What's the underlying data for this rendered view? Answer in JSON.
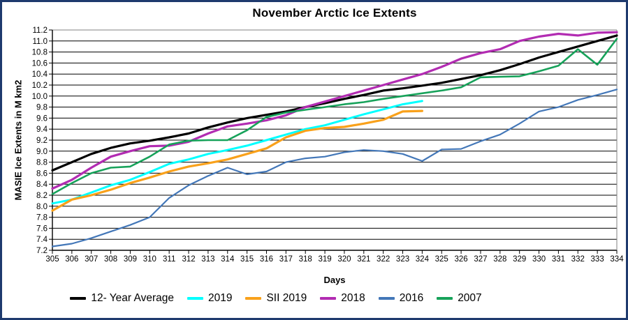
{
  "window": {
    "background": "#ffffff",
    "frame_color": "#1e3a6e"
  },
  "chart_data": {
    "type": "line",
    "title": "November Arctic Ice Extents",
    "xlabel": "Days",
    "ylabel": "MASIE Ice Extents in M km2",
    "xlim": [
      305,
      334
    ],
    "ylim": [
      7.2,
      11.2
    ],
    "ytick_step": 0.2,
    "grid": "horizontal",
    "legend_position": "bottom",
    "x": [
      305,
      306,
      307,
      308,
      309,
      310,
      311,
      312,
      313,
      314,
      315,
      316,
      317,
      318,
      319,
      320,
      321,
      322,
      323,
      324,
      325,
      326,
      327,
      328,
      329,
      330,
      331,
      332,
      333,
      334
    ],
    "series": [
      {
        "name": "12- Year Average",
        "color": "#000000",
        "width": 3.2,
        "values": [
          8.65,
          8.8,
          8.95,
          9.06,
          9.14,
          9.19,
          9.25,
          9.32,
          9.43,
          9.52,
          9.6,
          9.66,
          9.72,
          9.8,
          9.87,
          9.95,
          10.02,
          10.1,
          10.14,
          10.19,
          10.24,
          10.31,
          10.38,
          10.47,
          10.58,
          10.7,
          10.8,
          10.9,
          11.0,
          11.1
        ]
      },
      {
        "name": "2019",
        "color": "#00ffff",
        "width": 3.0,
        "values": [
          8.05,
          8.12,
          8.25,
          8.38,
          8.48,
          8.62,
          8.77,
          8.85,
          8.95,
          9.02,
          9.1,
          9.2,
          9.3,
          9.4,
          9.47,
          9.57,
          9.67,
          9.76,
          9.85,
          9.91
        ]
      },
      {
        "name": "SII 2019",
        "color": "#f9a11b",
        "width": 3.2,
        "values": [
          7.92,
          8.12,
          8.2,
          8.3,
          8.42,
          8.52,
          8.63,
          8.72,
          8.78,
          8.85,
          8.95,
          9.05,
          9.25,
          9.37,
          9.42,
          9.44,
          9.5,
          9.57,
          9.72,
          9.73
        ]
      },
      {
        "name": "2018",
        "color": "#b22cb2",
        "width": 3.2,
        "values": [
          8.32,
          8.48,
          8.7,
          8.9,
          9.0,
          9.09,
          9.1,
          9.17,
          9.32,
          9.45,
          9.5,
          9.56,
          9.65,
          9.8,
          9.9,
          10.0,
          10.1,
          10.2,
          10.3,
          10.4,
          10.53,
          10.68,
          10.78,
          10.85,
          11.0,
          11.08,
          11.13,
          11.1,
          11.15,
          11.16
        ]
      },
      {
        "name": "2016",
        "color": "#4377b8",
        "width": 2.2,
        "values": [
          7.27,
          7.32,
          7.42,
          7.54,
          7.66,
          7.8,
          8.15,
          8.38,
          8.55,
          8.7,
          8.58,
          8.63,
          8.8,
          8.87,
          8.9,
          8.98,
          9.02,
          9.0,
          8.95,
          8.82,
          9.03,
          9.04,
          9.18,
          9.3,
          9.5,
          9.72,
          9.8,
          9.93,
          10.02,
          10.12
        ]
      },
      {
        "name": "2007",
        "color": "#17a25a",
        "width": 2.6,
        "values": [
          8.22,
          8.42,
          8.6,
          8.7,
          8.72,
          8.9,
          9.12,
          9.19,
          9.2,
          9.2,
          9.38,
          9.62,
          9.7,
          9.75,
          9.8,
          9.85,
          9.89,
          9.95,
          10.0,
          10.05,
          10.1,
          10.16,
          10.34,
          10.35,
          10.36,
          10.45,
          10.55,
          10.85,
          10.57,
          11.04
        ]
      }
    ]
  }
}
